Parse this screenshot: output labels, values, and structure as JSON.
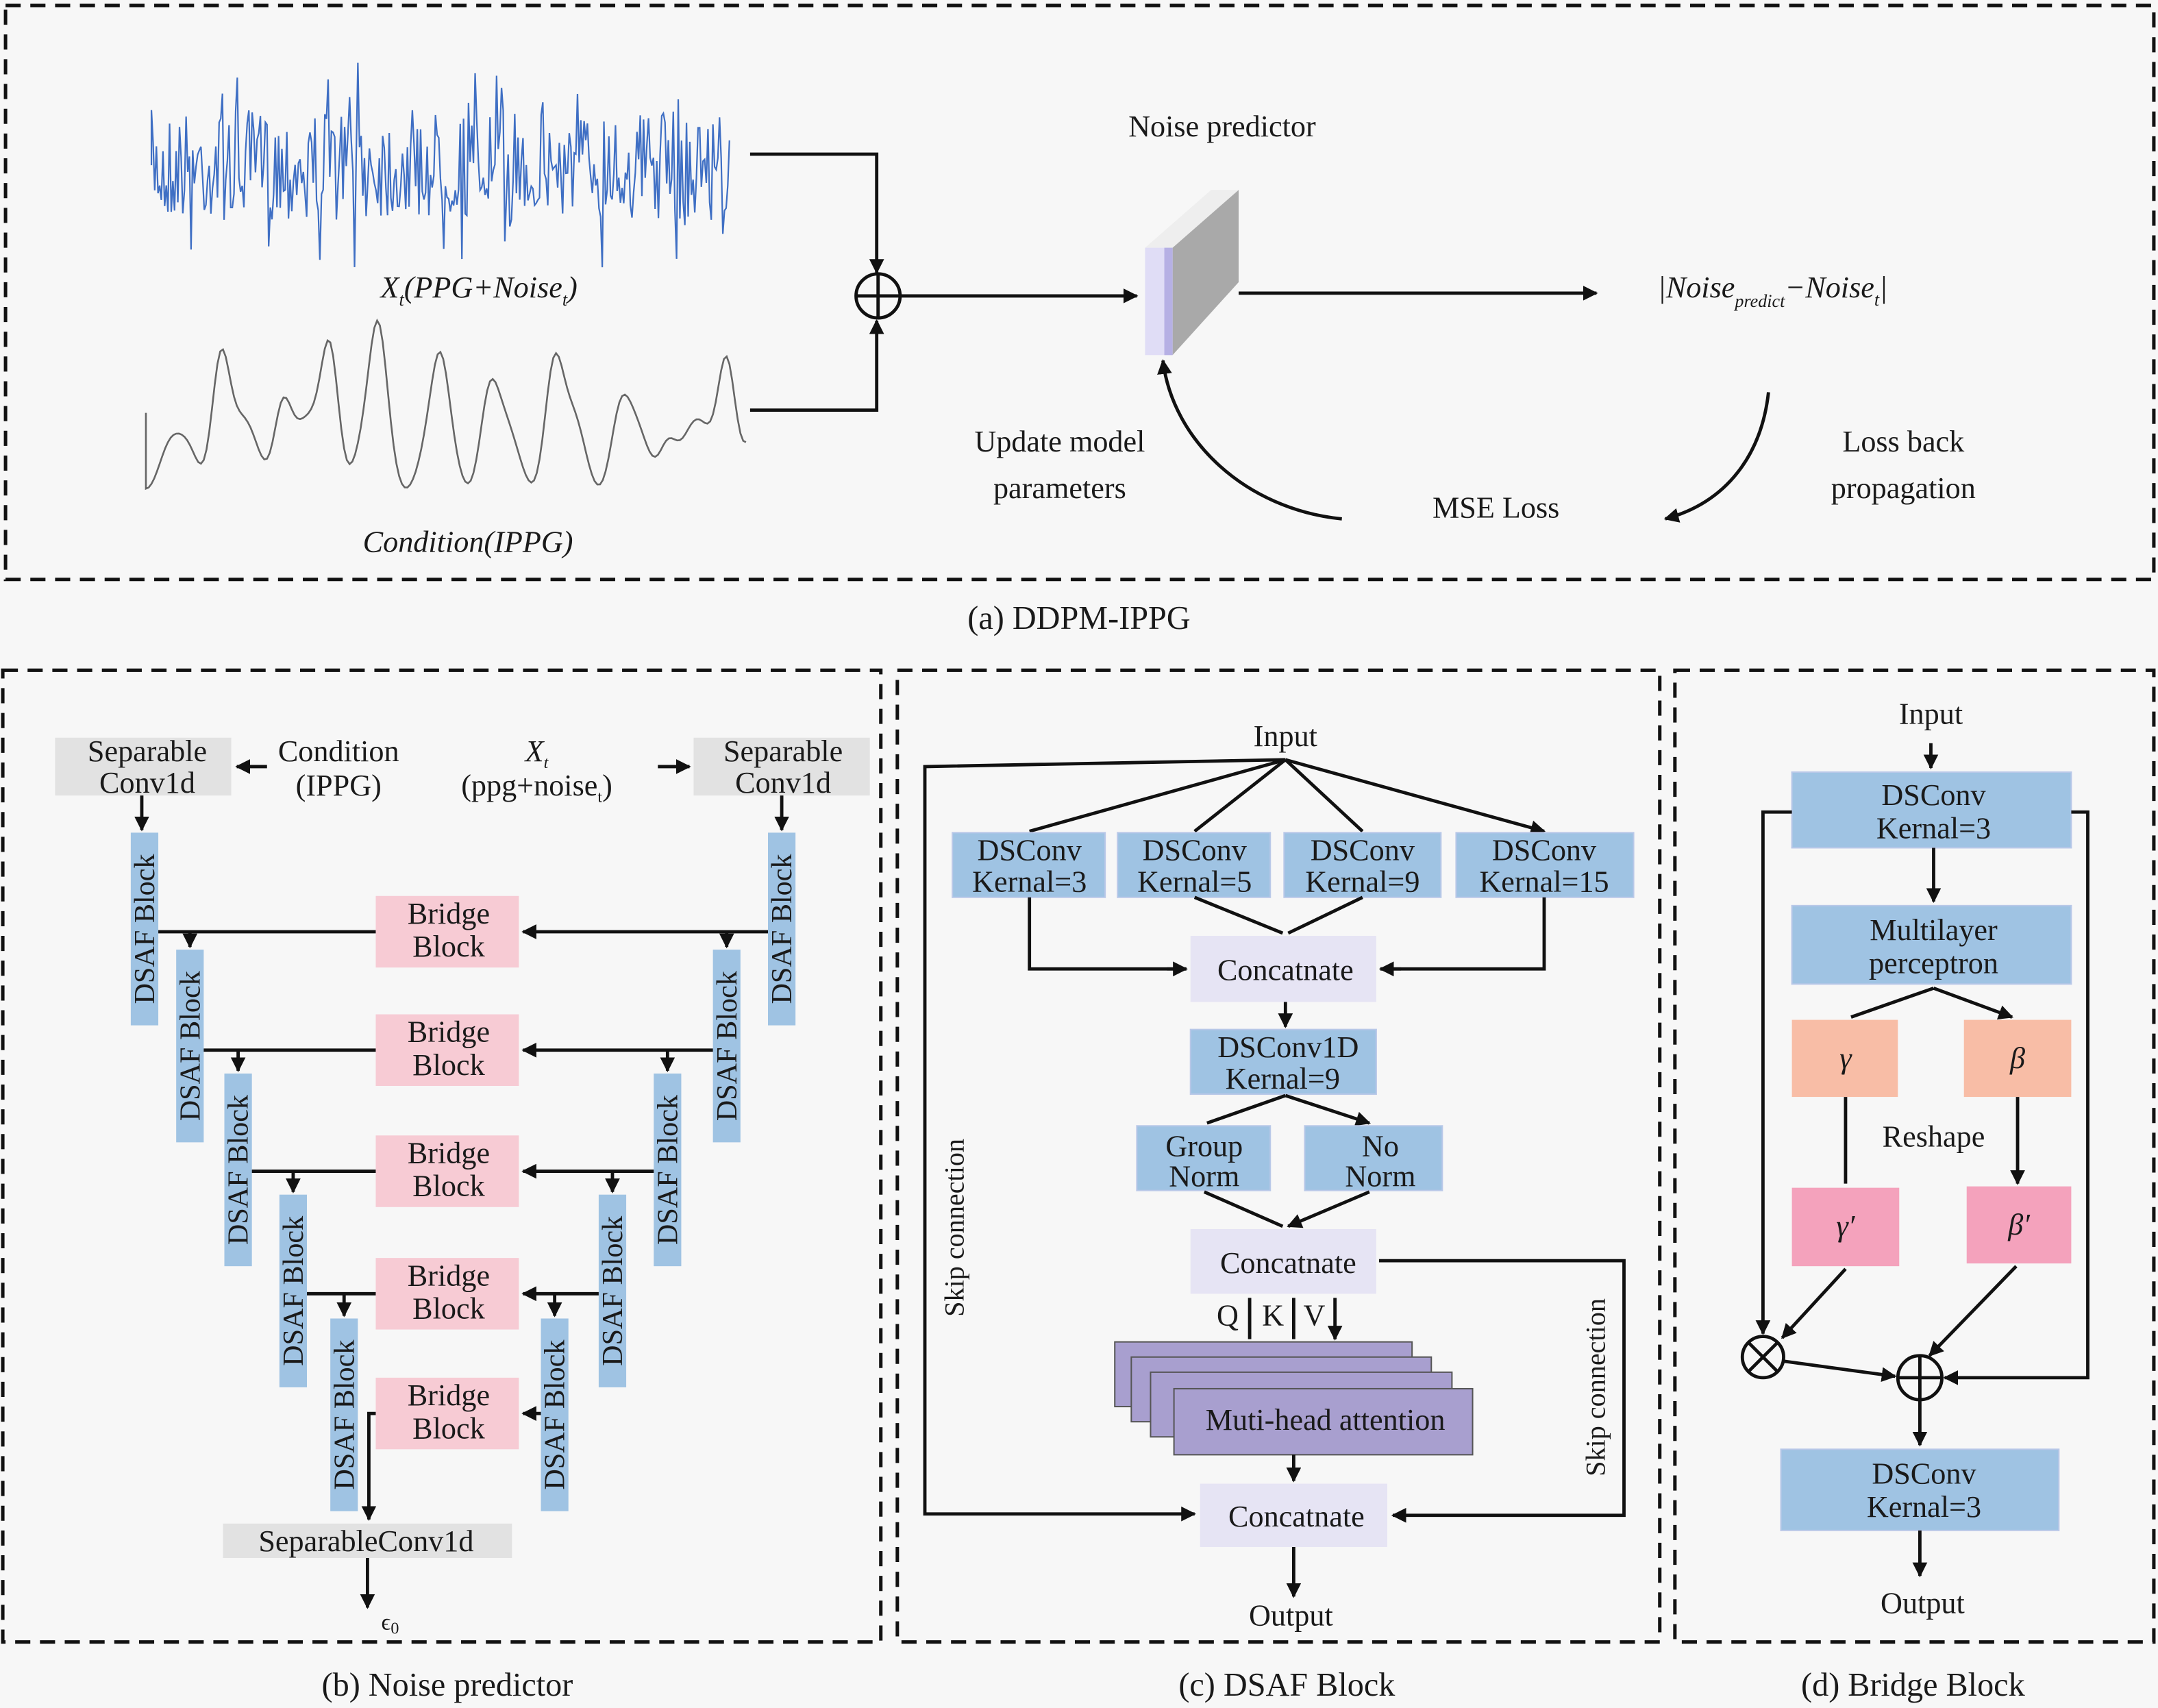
{
  "colors": {
    "background": "#f7f7f7",
    "blue_block": "#9fc3e3",
    "gray_block": "#e2e2e2",
    "bridge_block": "#f7cbd4",
    "concat_block": "#e6e4f4",
    "attention_block": "#a89fcf",
    "gamma_beta_block": "#f8bda6",
    "gamma_beta_prime_block": "#f4a2bc",
    "signal_blue": "#3f6fc4",
    "signal_gray": "#666666"
  },
  "panel_a": {
    "caption": "(a) DDPM-IPPG",
    "noisy_label": {
      "main": "X",
      "sub": "t",
      "mid": "(PPG+Noise",
      "sub2": "t",
      "end": ")"
    },
    "condition_label": "Condition(IPPG)",
    "noise_predictor": "Noise predictor",
    "loss_expr": {
      "open": "|Noise",
      "sub": "predict",
      "mid": "−Noise",
      "sub2": "t",
      "close": "|"
    },
    "update_line1": "Update model",
    "update_line2": "parameters",
    "mse_loss": "MSE Loss",
    "backprop_line1": "Loss back",
    "backprop_line2": "propagation",
    "icons": {
      "add": "circle-plus-icon"
    }
  },
  "panel_b": {
    "caption": "(b) Noise predictor",
    "sep_conv_line1": "Separable",
    "sep_conv_line2": "Conv1d",
    "condition_line1": "Condition",
    "condition_line2": "(IPPG)",
    "xt_main": "X",
    "xt_sub": "t",
    "xt_line2_a": "(ppg+noise",
    "xt_line2_sub": "t",
    "xt_line2_b": ")",
    "dsaf_label": "DSAF Block",
    "bridge_line1": "Bridge",
    "bridge_line2": "Block",
    "out_conv": "SeparableConv1d",
    "output_main": "ϵ",
    "output_sub": "0"
  },
  "panel_c": {
    "caption": "(c) DSAF Block",
    "input": "Input",
    "branches": [
      {
        "line1": "DSConv",
        "line2": "Kernal=3"
      },
      {
        "line1": "DSConv",
        "line2": "Kernal=5"
      },
      {
        "line1": "DSConv",
        "line2": "Kernal=9"
      },
      {
        "line1": "DSConv",
        "line2": "Kernal=15"
      }
    ],
    "concat": "Concatnate",
    "dsconv1d_line1": "DSConv1D",
    "dsconv1d_line2": "Kernal=9",
    "group_norm_line1": "Group",
    "group_norm_line2": "Norm",
    "no_norm_line1": "No",
    "no_norm_line2": "Norm",
    "q": "Q",
    "k": "K",
    "v": "V",
    "attention": "Muti-head attention",
    "skip": "Skip connection",
    "output": "Output"
  },
  "panel_d": {
    "caption": "(d) Bridge Block",
    "input": "Input",
    "dsconv_line1": "DSConv",
    "dsconv_line2": "Kernal=3",
    "mlp_line1": "Multilayer",
    "mlp_line2": "perceptron",
    "gamma": "γ",
    "beta": "β",
    "reshape": "Reshape",
    "gamma_prime": "γ′",
    "beta_prime": "β′",
    "output": "Output",
    "icons": {
      "multiply": "circle-times-icon",
      "add": "circle-plus-icon"
    }
  }
}
